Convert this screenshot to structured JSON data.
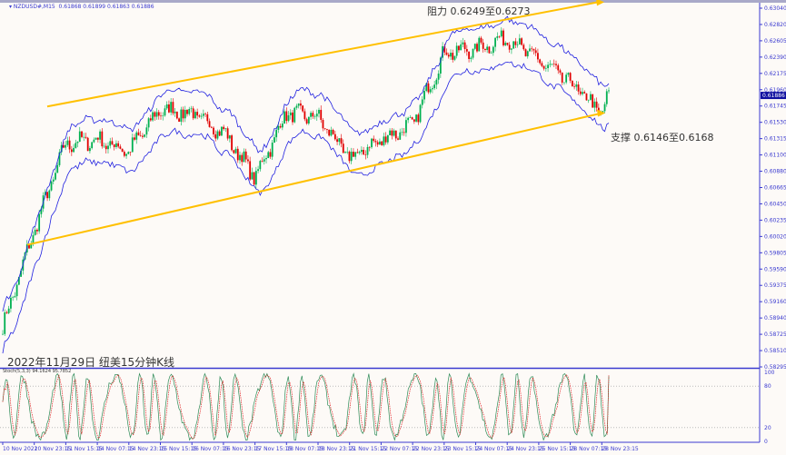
{
  "header": {
    "symbol": "NZDUSD#,M15",
    "ohlc": "0.61868 0.61899 0.61863 0.61886"
  },
  "annotations": {
    "resistance": "阻力 0.6249至0.6273",
    "support": "支撑 0.6146至0.6168",
    "caption": "2022年11月29日 纽美15分钟K线"
  },
  "stoch_label": "Stoch(5,3,3) 94.1624 95.7852",
  "colors": {
    "bull": "#00b050",
    "bear": "#e00000",
    "band": "#2020e0",
    "channel": "#ffc000",
    "axis": "#3a3ad0",
    "stoch_main": "#2e8b57",
    "stoch_signal": "#e02020"
  },
  "chart_data": {
    "type": "candlestick",
    "title": "",
    "ylim": [
      0.58295,
      0.6304
    ],
    "y_ticks": [
      "0.63040",
      "0.62820",
      "0.62605",
      "0.62390",
      "0.62175",
      "0.61960",
      "0.61745",
      "0.61530",
      "0.61315",
      "0.61100",
      "0.60880",
      "0.60665",
      "0.60450",
      "0.60235",
      "0.60020",
      "0.59805",
      "0.59590",
      "0.59375",
      "0.59160",
      "0.58940",
      "0.58725",
      "0.58510",
      "0.58295"
    ],
    "current_price": "0.61886",
    "x_ticks": [
      "10 Nov 2022",
      "10 Nov 23:15",
      "11 Nov 15:15",
      "14 Nov 07:15",
      "14 Nov 23:15",
      "15 Nov 15:15",
      "16 Nov 07:15",
      "16 Nov 23:15",
      "17 Nov 15:15",
      "18 Nov 07:15",
      "18 Nov 23:15",
      "21 Nov 15:15",
      "22 Nov 07:15",
      "22 Nov 23:15",
      "23 Nov 15:15",
      "24 Nov 07:15",
      "24 Nov 23:15",
      "25 Nov 15:15",
      "28 Nov 07:15",
      "28 Nov 23:15"
    ],
    "approx_close_at_ticks": [
      0.5882,
      0.601,
      0.6125,
      0.613,
      0.6115,
      0.617,
      0.6165,
      0.614,
      0.608,
      0.6165,
      0.616,
      0.6105,
      0.613,
      0.615,
      0.6245,
      0.625,
      0.6265,
      0.6235,
      0.6205,
      0.6165
    ],
    "last_close": 0.61886,
    "channel_upper": [
      0.6174,
      0.6312
    ],
    "channel_lower": [
      0.5991,
      0.6164
    ],
    "stoch_levels": [
      "100",
      "80",
      "20",
      "0"
    ],
    "stoch_last": [
      94.1624,
      95.7852
    ]
  }
}
